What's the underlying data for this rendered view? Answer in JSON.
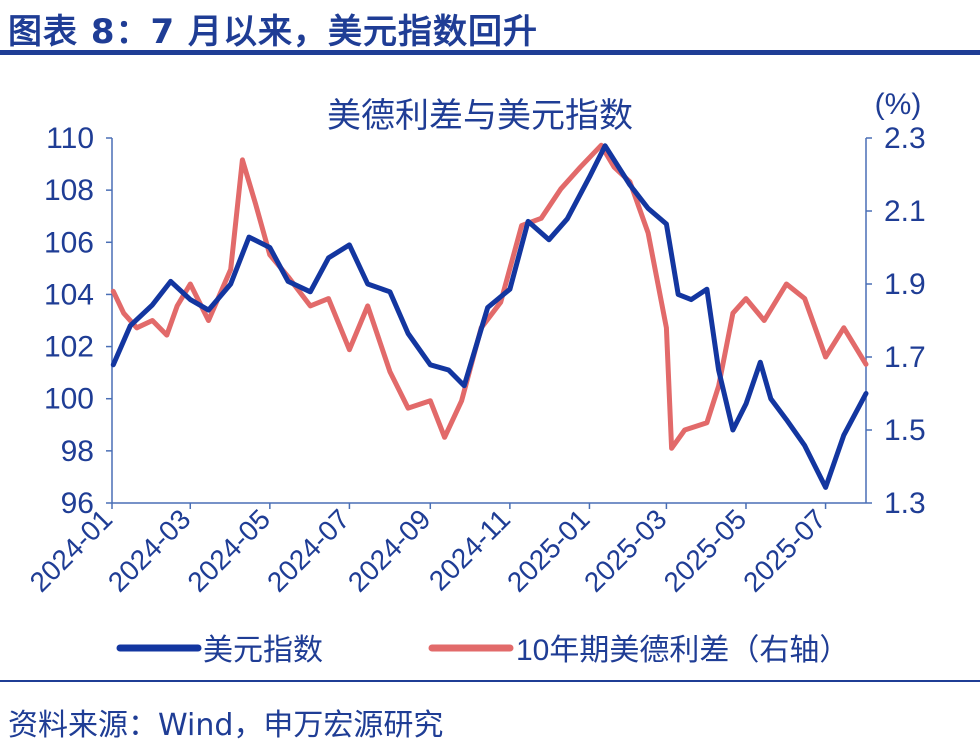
{
  "figure_title": "图表 8：7 月以来，美元指数回升",
  "source_note": "资料来源：Wind，申万宏源研究",
  "colors": {
    "usd_index": "#1336a0",
    "spread": "#e26a6a",
    "text": "#1f3d95",
    "axis": "#4a6fb5"
  },
  "chart_data": {
    "type": "line",
    "title": "美德利差与美元指数",
    "y2_unit_label": "(%)",
    "x_tick_labels": [
      "2024-01",
      "2024-03",
      "2024-05",
      "2024-07",
      "2024-09",
      "2024-11",
      "2025-01",
      "2025-03",
      "2025-05",
      "2025-07"
    ],
    "x_range": [
      "2024-01",
      "2025-08"
    ],
    "ylim_left": [
      96,
      110
    ],
    "yticks_left": [
      "110",
      "108",
      "106",
      "104",
      "102",
      "100",
      "98",
      "96"
    ],
    "ylim_right": [
      1.3,
      2.3
    ],
    "yticks_right": [
      "2.3",
      "2.1",
      "1.9",
      "1.7",
      "1.5",
      "1.3"
    ],
    "legend_position": "bottom",
    "series": [
      {
        "name": "美元指数",
        "axis": "left",
        "color": "#1336a0",
        "x": [
          "2024-01-02",
          "2024-01-15",
          "2024-02-01",
          "2024-02-15",
          "2024-03-01",
          "2024-03-15",
          "2024-04-01",
          "2024-04-15",
          "2024-05-01",
          "2024-05-15",
          "2024-06-01",
          "2024-06-15",
          "2024-07-01",
          "2024-07-15",
          "2024-08-01",
          "2024-08-15",
          "2024-09-01",
          "2024-09-15",
          "2024-09-27",
          "2024-10-15",
          "2024-11-01",
          "2024-11-15",
          "2024-12-01",
          "2024-12-15",
          "2025-01-01",
          "2025-01-13",
          "2025-02-01",
          "2025-02-15",
          "2025-03-01",
          "2025-03-10",
          "2025-03-20",
          "2025-04-01",
          "2025-04-10",
          "2025-04-21",
          "2025-05-01",
          "2025-05-12",
          "2025-05-20",
          "2025-06-01",
          "2025-06-15",
          "2025-07-01",
          "2025-07-15",
          "2025-08-01"
        ],
        "values": [
          101.3,
          102.8,
          103.6,
          104.5,
          103.8,
          103.4,
          104.4,
          106.2,
          105.8,
          104.5,
          104.1,
          105.4,
          105.9,
          104.4,
          104.1,
          102.5,
          101.3,
          101.1,
          100.5,
          103.5,
          104.2,
          106.8,
          106.1,
          106.9,
          108.5,
          109.7,
          108.2,
          107.3,
          106.7,
          104.0,
          103.8,
          104.2,
          101.1,
          98.8,
          99.8,
          101.4,
          100.0,
          99.2,
          98.2,
          96.6,
          98.6,
          100.2
        ]
      },
      {
        "name": "10年期美德利差（右轴）",
        "axis": "right",
        "color": "#e26a6a",
        "x": [
          "2024-01-02",
          "2024-01-10",
          "2024-01-20",
          "2024-02-01",
          "2024-02-12",
          "2024-02-20",
          "2024-03-01",
          "2024-03-15",
          "2024-04-01",
          "2024-04-10",
          "2024-04-20",
          "2024-05-01",
          "2024-05-15",
          "2024-06-01",
          "2024-06-15",
          "2024-07-01",
          "2024-07-15",
          "2024-08-01",
          "2024-08-15",
          "2024-09-01",
          "2024-09-12",
          "2024-09-25",
          "2024-10-10",
          "2024-10-25",
          "2024-11-10",
          "2024-11-25",
          "2024-12-10",
          "2024-12-25",
          "2025-01-10",
          "2025-01-20",
          "2025-02-01",
          "2025-02-15",
          "2025-03-01",
          "2025-03-05",
          "2025-03-15",
          "2025-04-01",
          "2025-04-10",
          "2025-04-21",
          "2025-05-01",
          "2025-05-15",
          "2025-06-01",
          "2025-06-15",
          "2025-07-01",
          "2025-07-15",
          "2025-08-01"
        ],
        "values": [
          1.88,
          1.82,
          1.78,
          1.8,
          1.76,
          1.84,
          1.9,
          1.8,
          1.94,
          2.24,
          2.12,
          1.98,
          1.92,
          1.84,
          1.86,
          1.72,
          1.84,
          1.66,
          1.56,
          1.58,
          1.48,
          1.58,
          1.78,
          1.85,
          2.06,
          2.08,
          2.16,
          2.22,
          2.28,
          2.22,
          2.18,
          2.04,
          1.78,
          1.45,
          1.5,
          1.52,
          1.62,
          1.82,
          1.86,
          1.8,
          1.9,
          1.86,
          1.7,
          1.78,
          1.68
        ]
      }
    ]
  }
}
